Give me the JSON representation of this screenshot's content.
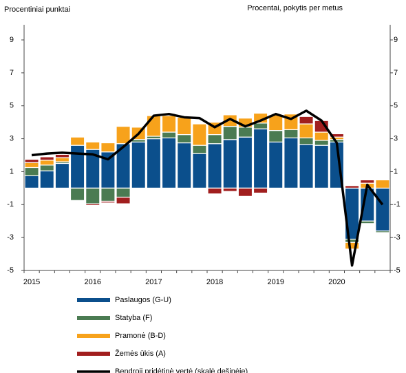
{
  "chart_data": {
    "type": "bar",
    "y_label": "Procentiniai punktai",
    "y2_label": "Procentai, pokytis per metus",
    "categories": [
      "2015",
      null,
      null,
      null,
      "2016",
      null,
      null,
      null,
      "2017",
      null,
      null,
      null,
      "2018",
      null,
      null,
      null,
      "2019",
      null,
      null,
      null,
      "2020",
      null,
      null,
      null
    ],
    "ylim": [
      -5,
      9
    ],
    "yticks": [
      9,
      7,
      5,
      3,
      1,
      -1,
      -3,
      -5
    ],
    "y2lim": [
      -5,
      9
    ],
    "y2ticks": [
      9,
      7,
      5,
      3,
      1,
      -1,
      -3,
      -5
    ],
    "stacked": true,
    "series": [
      {
        "name": "Paslaugos (G-U)",
        "color": "#0b4f8c",
        "values": [
          0.75,
          1.05,
          1.5,
          2.6,
          2.35,
          2.2,
          2.7,
          2.8,
          3.0,
          3.05,
          2.75,
          2.1,
          2.7,
          2.95,
          3.1,
          3.6,
          2.8,
          3.05,
          2.65,
          2.6,
          2.8,
          -3.1,
          -2.0,
          -2.6
        ]
      },
      {
        "name": "Statyba (F)",
        "color": "#4b7b52",
        "values": [
          0.5,
          0.35,
          0.1,
          -0.75,
          -0.95,
          -0.8,
          -0.55,
          0.15,
          0.15,
          0.35,
          0.5,
          0.5,
          0.55,
          0.8,
          0.6,
          0.35,
          0.7,
          0.5,
          0.4,
          0.3,
          0.15,
          -0.2,
          -0.15,
          -0.1
        ]
      },
      {
        "name": "Pramonė (B-D)",
        "color": "#f7a21b",
        "values": [
          0.3,
          0.3,
          0.25,
          0.5,
          0.45,
          0.55,
          1.05,
          0.75,
          1.25,
          1.0,
          1.05,
          1.3,
          0.75,
          0.7,
          0.55,
          0.6,
          0.95,
          0.95,
          0.85,
          0.5,
          0.15,
          -0.4,
          0.3,
          0.5
        ]
      },
      {
        "name": "Žemės ūkis (A)",
        "color": "#a11e1e",
        "values": [
          0.2,
          0.2,
          0.2,
          0,
          -0.1,
          -0.1,
          -0.4,
          0,
          0,
          0,
          0,
          0,
          -0.35,
          -0.2,
          -0.5,
          -0.3,
          0,
          0,
          0.45,
          0.7,
          0.2,
          0.15,
          0.2,
          0
        ]
      },
      {
        "name": "Bendroji pridėtinė vertė (skalė dešinėje)",
        "color": "#000000",
        "type": "line",
        "axis": "y2",
        "values": [
          2.0,
          2.1,
          2.15,
          2.1,
          2.05,
          1.75,
          2.5,
          3.3,
          4.4,
          4.5,
          4.3,
          4.25,
          3.7,
          4.2,
          3.75,
          4.1,
          4.5,
          4.2,
          4.7,
          4.1,
          2.75,
          -4.7,
          0.2,
          -1.0
        ]
      }
    ]
  }
}
